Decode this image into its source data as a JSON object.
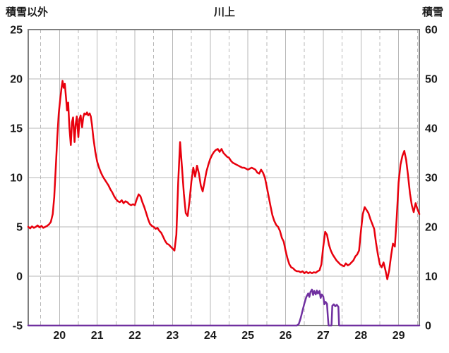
{
  "header": {
    "left_axis_title": "積雪以外",
    "title": "川上",
    "right_axis_title": "積雪"
  },
  "chart_data": {
    "type": "line",
    "title": "川上",
    "left_axis": {
      "label": "積雪以外",
      "min": -5,
      "max": 25,
      "ticks": [
        25,
        20,
        15,
        10,
        5,
        0,
        -5
      ]
    },
    "right_axis": {
      "label": "積雪",
      "min": 0,
      "max": 60,
      "ticks": [
        60,
        50,
        40,
        30,
        20,
        10,
        0
      ]
    },
    "x_axis": {
      "min": 19.17,
      "max": 29.55,
      "ticks": [
        20,
        21,
        22,
        23,
        24,
        25,
        26,
        27,
        28,
        29
      ]
    },
    "grid": {
      "color": "#b7b7b7",
      "frame_color": "#7f7f7f",
      "h_lines": [
        20,
        15,
        10,
        5,
        0
      ],
      "v_solid": [
        20,
        21,
        22,
        23,
        24,
        25,
        26,
        27,
        28,
        29
      ],
      "v_dashed": [
        19.5,
        20.5,
        21.5,
        22.5,
        23.5,
        24.5,
        25.5,
        26.5,
        27.5,
        28.5,
        29.5
      ]
    },
    "text_color": "#1a1a1a",
    "series": [
      {
        "name": "積雪",
        "name_en": "snow-depth-series",
        "axis": "right",
        "color": "#7030a0",
        "width": 2.5,
        "points": [
          [
            19.17,
            0
          ],
          [
            26.3,
            0
          ],
          [
            26.35,
            0.3
          ],
          [
            26.4,
            1.5
          ],
          [
            26.45,
            3.0
          ],
          [
            26.5,
            4.5
          ],
          [
            26.55,
            5.8
          ],
          [
            26.6,
            6.5
          ],
          [
            26.63,
            5.8
          ],
          [
            26.66,
            6.8
          ],
          [
            26.7,
            7.3
          ],
          [
            26.73,
            6.2
          ],
          [
            26.76,
            7.0
          ],
          [
            26.8,
            6.3
          ],
          [
            26.83,
            7.1
          ],
          [
            26.86,
            6.5
          ],
          [
            26.9,
            7.0
          ],
          [
            26.93,
            5.6
          ],
          [
            26.96,
            6.3
          ],
          [
            27.0,
            5.9
          ],
          [
            27.03,
            4.3
          ],
          [
            27.06,
            4.8
          ],
          [
            27.1,
            4.4
          ],
          [
            27.12,
            2.0
          ],
          [
            27.14,
            0
          ],
          [
            27.22,
            0
          ],
          [
            27.24,
            4.0
          ],
          [
            27.28,
            4.3
          ],
          [
            27.32,
            3.9
          ],
          [
            27.36,
            4.2
          ],
          [
            27.4,
            3.8
          ],
          [
            27.42,
            0
          ],
          [
            29.55,
            0
          ]
        ]
      },
      {
        "name": "積雪以外",
        "name_en": "non-snow-series",
        "axis": "left",
        "color": "#e8000d",
        "width": 2.5,
        "points": [
          [
            19.17,
            5.0
          ],
          [
            19.22,
            4.85
          ],
          [
            19.27,
            5.05
          ],
          [
            19.32,
            4.9
          ],
          [
            19.37,
            5.0
          ],
          [
            19.42,
            5.15
          ],
          [
            19.47,
            4.95
          ],
          [
            19.52,
            5.1
          ],
          [
            19.57,
            4.9
          ],
          [
            19.62,
            5.0
          ],
          [
            19.67,
            5.1
          ],
          [
            19.72,
            5.25
          ],
          [
            19.77,
            5.5
          ],
          [
            19.82,
            6.3
          ],
          [
            19.86,
            8.0
          ],
          [
            19.9,
            11.0
          ],
          [
            19.94,
            14.0
          ],
          [
            19.98,
            16.5
          ],
          [
            20.02,
            18.0
          ],
          [
            20.05,
            19.0
          ],
          [
            20.08,
            19.8
          ],
          [
            20.11,
            19.1
          ],
          [
            20.14,
            19.5
          ],
          [
            20.17,
            18.2
          ],
          [
            20.2,
            16.8
          ],
          [
            20.23,
            17.6
          ],
          [
            20.26,
            15.2
          ],
          [
            20.3,
            13.3
          ],
          [
            20.33,
            15.6
          ],
          [
            20.36,
            16.1
          ],
          [
            20.4,
            13.6
          ],
          [
            20.43,
            15.4
          ],
          [
            20.46,
            16.2
          ],
          [
            20.5,
            14.1
          ],
          [
            20.53,
            15.9
          ],
          [
            20.56,
            16.3
          ],
          [
            20.6,
            15.1
          ],
          [
            20.63,
            16.1
          ],
          [
            20.66,
            16.5
          ],
          [
            20.7,
            16.4
          ],
          [
            20.73,
            16.6
          ],
          [
            20.76,
            16.3
          ],
          [
            20.8,
            16.5
          ],
          [
            20.83,
            16.2
          ],
          [
            20.86,
            15.4
          ],
          [
            20.9,
            14.0
          ],
          [
            20.95,
            12.6
          ],
          [
            21.0,
            11.6
          ],
          [
            21.05,
            11.0
          ],
          [
            21.1,
            10.5
          ],
          [
            21.15,
            10.1
          ],
          [
            21.2,
            9.8
          ],
          [
            21.25,
            9.5
          ],
          [
            21.3,
            9.2
          ],
          [
            21.35,
            8.8
          ],
          [
            21.4,
            8.5
          ],
          [
            21.45,
            8.1
          ],
          [
            21.5,
            7.8
          ],
          [
            21.55,
            7.6
          ],
          [
            21.6,
            7.5
          ],
          [
            21.65,
            7.7
          ],
          [
            21.7,
            7.4
          ],
          [
            21.75,
            7.6
          ],
          [
            21.8,
            7.5
          ],
          [
            21.85,
            7.3
          ],
          [
            21.9,
            7.2
          ],
          [
            21.95,
            7.3
          ],
          [
            22.0,
            7.2
          ],
          [
            22.05,
            7.8
          ],
          [
            22.1,
            8.3
          ],
          [
            22.15,
            8.1
          ],
          [
            22.2,
            7.5
          ],
          [
            22.25,
            7.0
          ],
          [
            22.3,
            6.4
          ],
          [
            22.35,
            5.8
          ],
          [
            22.4,
            5.3
          ],
          [
            22.45,
            5.1
          ],
          [
            22.5,
            5.0
          ],
          [
            22.55,
            4.8
          ],
          [
            22.6,
            4.9
          ],
          [
            22.65,
            4.6
          ],
          [
            22.7,
            4.4
          ],
          [
            22.75,
            4.0
          ],
          [
            22.8,
            3.6
          ],
          [
            22.85,
            3.3
          ],
          [
            22.9,
            3.2
          ],
          [
            22.95,
            3.0
          ],
          [
            23.0,
            2.8
          ],
          [
            23.05,
            2.6
          ],
          [
            23.1,
            4.2
          ],
          [
            23.15,
            9.5
          ],
          [
            23.2,
            13.6
          ],
          [
            23.25,
            11.0
          ],
          [
            23.3,
            8.4
          ],
          [
            23.35,
            6.4
          ],
          [
            23.4,
            6.1
          ],
          [
            23.45,
            7.6
          ],
          [
            23.5,
            9.6
          ],
          [
            23.55,
            11.0
          ],
          [
            23.6,
            10.1
          ],
          [
            23.65,
            11.2
          ],
          [
            23.7,
            10.4
          ],
          [
            23.75,
            9.2
          ],
          [
            23.8,
            8.6
          ],
          [
            23.85,
            9.6
          ],
          [
            23.9,
            10.6
          ],
          [
            23.95,
            11.3
          ],
          [
            24.0,
            11.9
          ],
          [
            24.05,
            12.3
          ],
          [
            24.1,
            12.6
          ],
          [
            24.15,
            12.8
          ],
          [
            24.2,
            12.9
          ],
          [
            24.25,
            12.6
          ],
          [
            24.3,
            12.9
          ],
          [
            24.35,
            12.5
          ],
          [
            24.4,
            12.3
          ],
          [
            24.45,
            12.1
          ],
          [
            24.5,
            12.0
          ],
          [
            24.55,
            11.7
          ],
          [
            24.6,
            11.5
          ],
          [
            24.65,
            11.4
          ],
          [
            24.7,
            11.3
          ],
          [
            24.75,
            11.2
          ],
          [
            24.8,
            11.1
          ],
          [
            24.85,
            11.0
          ],
          [
            24.9,
            11.0
          ],
          [
            24.95,
            10.9
          ],
          [
            25.0,
            10.8
          ],
          [
            25.05,
            10.9
          ],
          [
            25.1,
            11.0
          ],
          [
            25.15,
            10.9
          ],
          [
            25.2,
            10.8
          ],
          [
            25.25,
            10.5
          ],
          [
            25.3,
            10.4
          ],
          [
            25.35,
            10.8
          ],
          [
            25.4,
            10.5
          ],
          [
            25.45,
            10.0
          ],
          [
            25.5,
            9.1
          ],
          [
            25.55,
            8.1
          ],
          [
            25.6,
            7.1
          ],
          [
            25.65,
            6.2
          ],
          [
            25.7,
            5.6
          ],
          [
            25.75,
            5.2
          ],
          [
            25.8,
            5.0
          ],
          [
            25.85,
            4.6
          ],
          [
            25.9,
            3.9
          ],
          [
            25.95,
            3.5
          ],
          [
            26.0,
            2.6
          ],
          [
            26.05,
            1.8
          ],
          [
            26.1,
            1.2
          ],
          [
            26.15,
            0.9
          ],
          [
            26.2,
            0.8
          ],
          [
            26.25,
            0.6
          ],
          [
            26.3,
            0.5
          ],
          [
            26.35,
            0.5
          ],
          [
            26.4,
            0.4
          ],
          [
            26.45,
            0.5
          ],
          [
            26.5,
            0.3
          ],
          [
            26.55,
            0.45
          ],
          [
            26.6,
            0.3
          ],
          [
            26.65,
            0.4
          ],
          [
            26.7,
            0.3
          ],
          [
            26.75,
            0.4
          ],
          [
            26.8,
            0.35
          ],
          [
            26.85,
            0.5
          ],
          [
            26.9,
            0.6
          ],
          [
            26.95,
            1.2
          ],
          [
            27.0,
            3.0
          ],
          [
            27.05,
            4.5
          ],
          [
            27.1,
            4.2
          ],
          [
            27.15,
            3.2
          ],
          [
            27.2,
            2.6
          ],
          [
            27.25,
            2.2
          ],
          [
            27.3,
            1.9
          ],
          [
            27.35,
            1.6
          ],
          [
            27.4,
            1.4
          ],
          [
            27.45,
            1.2
          ],
          [
            27.5,
            1.1
          ],
          [
            27.55,
            1.0
          ],
          [
            27.6,
            1.3
          ],
          [
            27.65,
            1.1
          ],
          [
            27.7,
            1.2
          ],
          [
            27.75,
            1.4
          ],
          [
            27.8,
            1.6
          ],
          [
            27.85,
            2.0
          ],
          [
            27.9,
            2.2
          ],
          [
            27.95,
            2.6
          ],
          [
            28.0,
            4.6
          ],
          [
            28.05,
            6.3
          ],
          [
            28.1,
            7.0
          ],
          [
            28.15,
            6.7
          ],
          [
            28.2,
            6.4
          ],
          [
            28.25,
            5.8
          ],
          [
            28.3,
            5.3
          ],
          [
            28.35,
            4.8
          ],
          [
            28.4,
            3.4
          ],
          [
            28.45,
            2.2
          ],
          [
            28.5,
            1.2
          ],
          [
            28.55,
            0.9
          ],
          [
            28.6,
            1.4
          ],
          [
            28.65,
            0.6
          ],
          [
            28.7,
            -0.3
          ],
          [
            28.75,
            0.6
          ],
          [
            28.8,
            2.1
          ],
          [
            28.85,
            3.3
          ],
          [
            28.9,
            3.0
          ],
          [
            28.95,
            6.0
          ],
          [
            29.0,
            9.5
          ],
          [
            29.05,
            11.3
          ],
          [
            29.1,
            12.2
          ],
          [
            29.15,
            12.7
          ],
          [
            29.2,
            11.8
          ],
          [
            29.25,
            10.2
          ],
          [
            29.3,
            8.4
          ],
          [
            29.35,
            7.2
          ],
          [
            29.4,
            6.5
          ],
          [
            29.45,
            7.4
          ],
          [
            29.5,
            6.8
          ],
          [
            29.55,
            6.3
          ]
        ]
      }
    ]
  }
}
